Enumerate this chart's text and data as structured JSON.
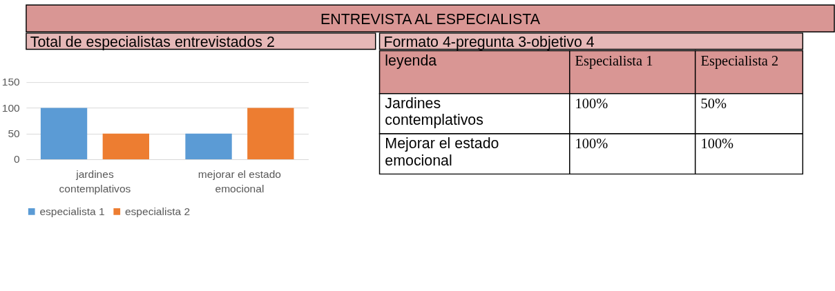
{
  "chart_data": [
    {
      "type": "other",
      "title": "ENTREVISTA AL ESPECIALISTA"
    },
    {
      "type": "bar",
      "title": "Total de especialistas entrevistados 2",
      "categories": [
        "jardines contemplativos",
        "mejorar el estado emocional"
      ],
      "series": [
        {
          "name": "especialista 1",
          "color": "#5b9bd5",
          "values": [
            100,
            50
          ]
        },
        {
          "name": "especialista 2",
          "color": "#ed7d31",
          "values": [
            50,
            100
          ]
        }
      ],
      "ylim": [
        0,
        150
      ],
      "yticks": [
        0,
        50,
        100,
        150
      ],
      "grid": "y",
      "legend": "bottom"
    },
    {
      "type": "other",
      "title": "Formato 4-pregunta 3-objetivo 4",
      "annotations": [
        "leyenda",
        "Especialista 1",
        "Especialista 2",
        "Jardines contemplativos",
        "100%",
        "50%",
        "Mejorar el estado emocional",
        "100%",
        "100%"
      ]
    }
  ]
}
